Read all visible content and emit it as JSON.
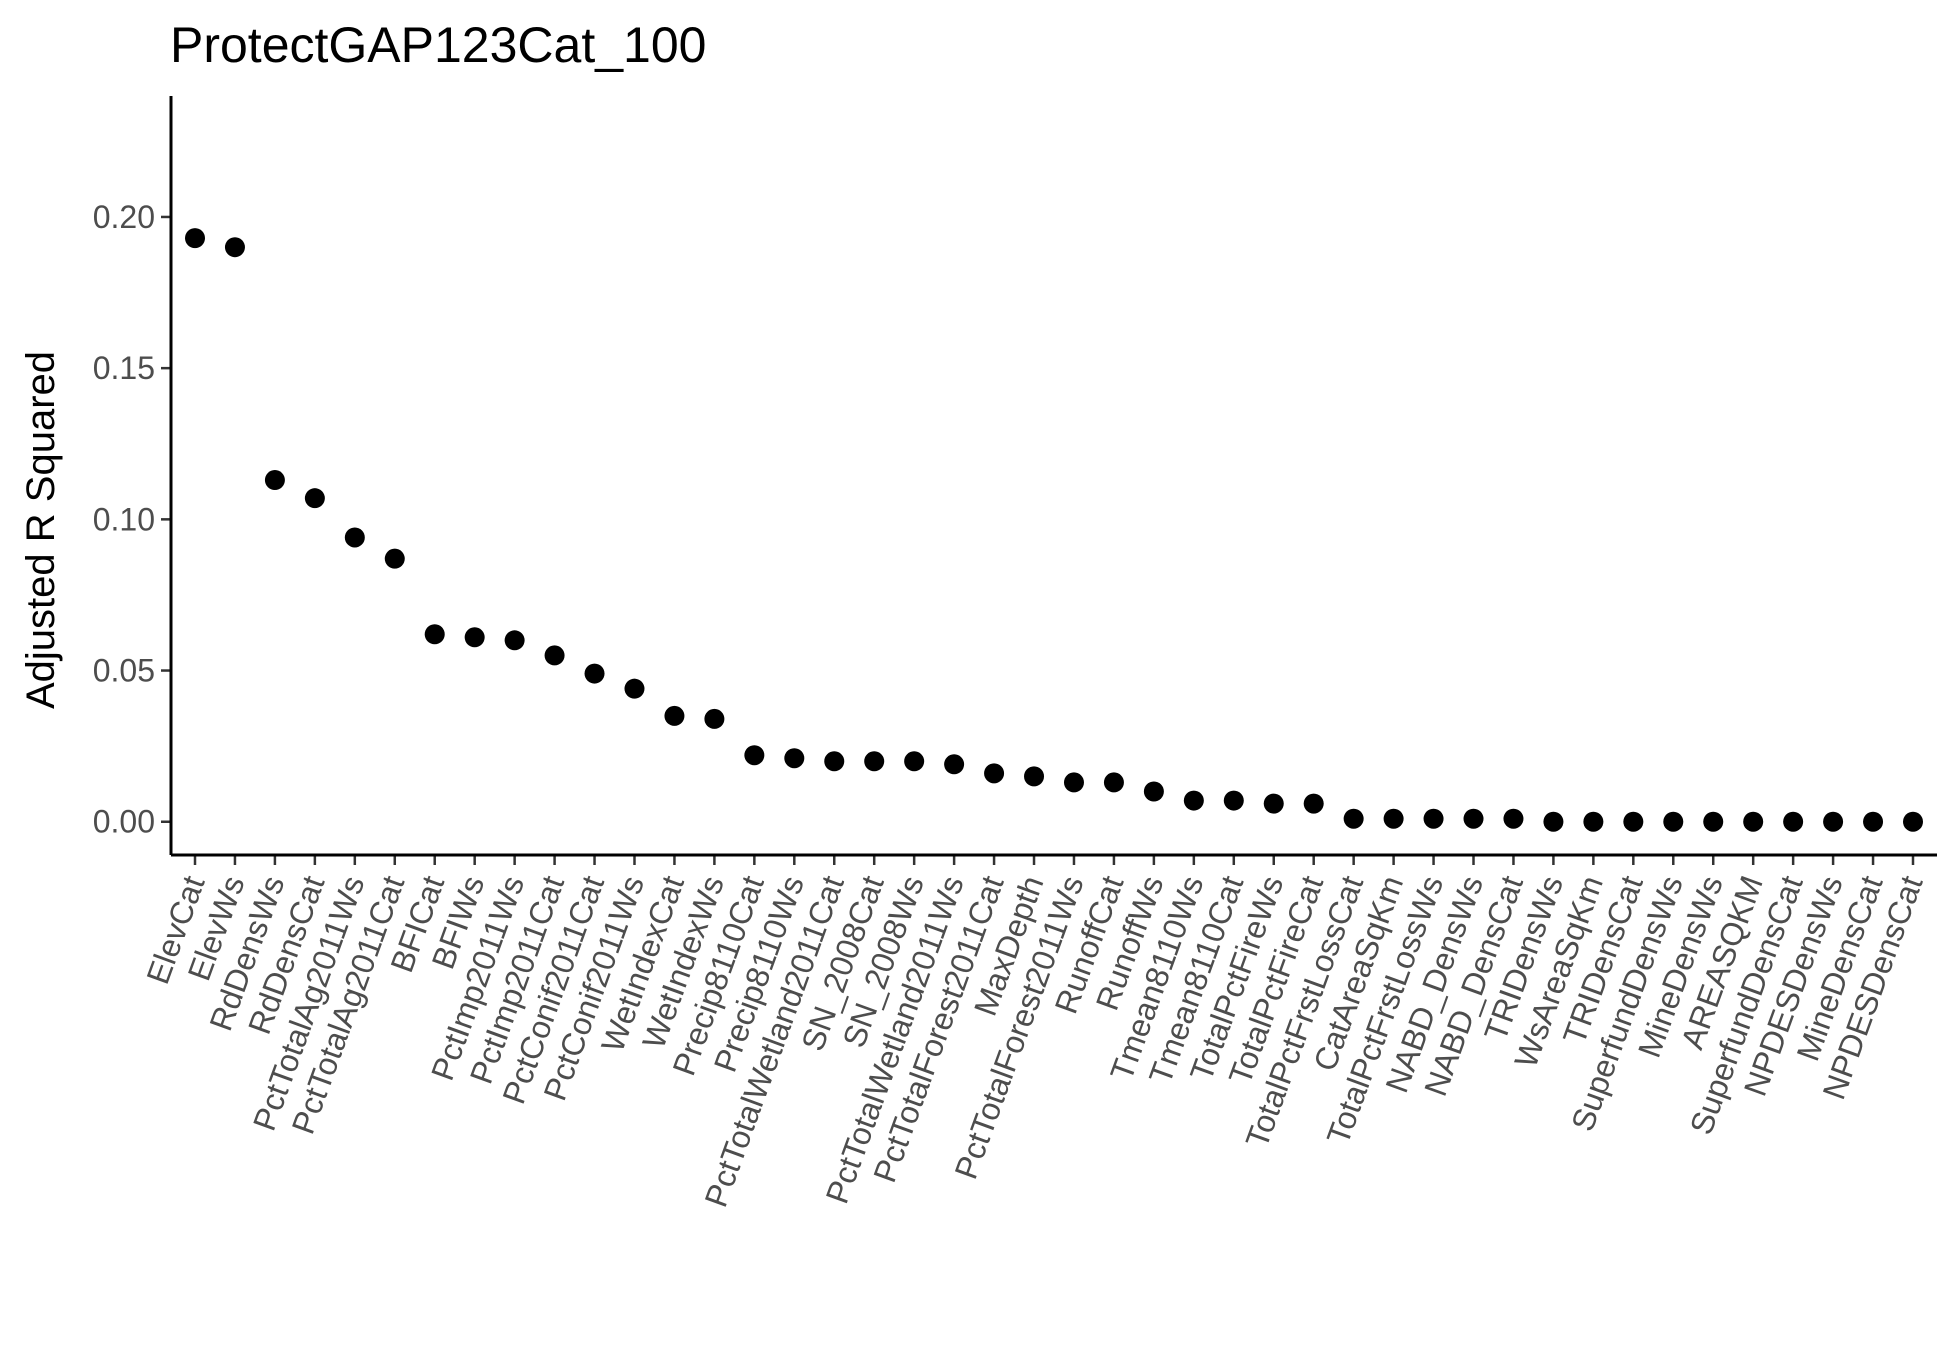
{
  "chart_data": {
    "type": "scatter",
    "title": "ProtectGAP123Cat_100",
    "xlabel": "",
    "ylabel": "Adjusted R Squared",
    "ylim": [
      -0.011,
      0.24
    ],
    "yticks": [
      0.0,
      0.05,
      0.1,
      0.15,
      0.2
    ],
    "ytick_labels": [
      "0.00",
      "0.05",
      "0.10",
      "0.15",
      "0.20"
    ],
    "grid": false,
    "marker_color": "#000000",
    "categories": [
      "ElevCat",
      "ElevWs",
      "RdDensWs",
      "RdDensCat",
      "PctTotalAg2011Ws",
      "PctTotalAg2011Cat",
      "BFICat",
      "BFIWs",
      "PctImp2011Ws",
      "PctImp2011Cat",
      "PctConif2011Cat",
      "PctConif2011Ws",
      "WetIndexCat",
      "WetIndexWs",
      "Precip8110Cat",
      "Precip8110Ws",
      "PctTotalWetland2011Cat",
      "SN_2008Cat",
      "SN_2008Ws",
      "PctTotalWetland2011Ws",
      "PctTotalForest2011Cat",
      "MaxDepth",
      "PctTotalForest2011Ws",
      "RunoffCat",
      "RunoffWs",
      "Tmean8110Ws",
      "Tmean8110Cat",
      "TotalPctFireWs",
      "TotalPctFireCat",
      "TotalPctFrstLossCat",
      "CatAreaSqKm",
      "TotalPctFrstLossWs",
      "NABD_DensWs",
      "NABD_DensCat",
      "TRIDensWs",
      "WsAreaSqKm",
      "TRIDensCat",
      "SuperfundDensWs",
      "MineDensWs",
      "AREASQKM",
      "SuperfundDensCat",
      "NPDESDensWs",
      "MineDensCat",
      "NPDESDensCat"
    ],
    "values": [
      0.193,
      0.19,
      0.113,
      0.107,
      0.094,
      0.087,
      0.062,
      0.061,
      0.06,
      0.055,
      0.049,
      0.044,
      0.035,
      0.034,
      0.022,
      0.021,
      0.02,
      0.02,
      0.02,
      0.019,
      0.016,
      0.015,
      0.013,
      0.013,
      0.01,
      0.007,
      0.007,
      0.006,
      0.006,
      0.001,
      0.001,
      0.001,
      0.001,
      0.001,
      0.0,
      0.0,
      0.0,
      0.0,
      0.0,
      0.0,
      0.0,
      0.0,
      0.0,
      0.0
    ]
  }
}
